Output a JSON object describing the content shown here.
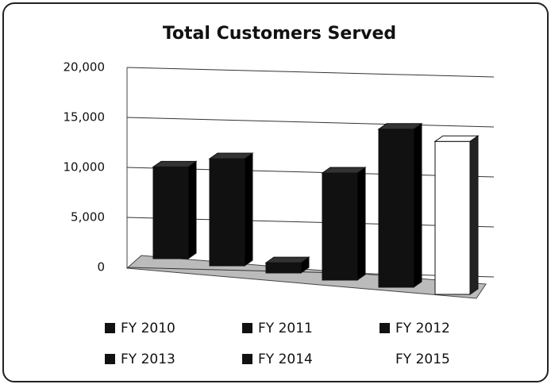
{
  "chart_data": {
    "type": "bar3d",
    "title": "Total Customers Served",
    "categories": [
      "FY 2010",
      "FY 2011",
      "FY 2012",
      "FY 2013",
      "FY 2014",
      "FY 2015"
    ],
    "values": [
      9000,
      10500,
      1000,
      10500,
      15500,
      15000
    ],
    "colors": [
      "#111111",
      "#111111",
      "#111111",
      "#111111",
      "#111111",
      "#ffffff"
    ],
    "ylim": [
      0,
      20000
    ],
    "yticks": [
      0,
      {
        "value": 5000,
        "label": "5,000"
      },
      {
        "value": 10000,
        "label": "10,000"
      },
      {
        "value": 15000,
        "label": "15,000"
      },
      {
        "value": 20000,
        "label": "20,000"
      }
    ],
    "grid": true
  }
}
